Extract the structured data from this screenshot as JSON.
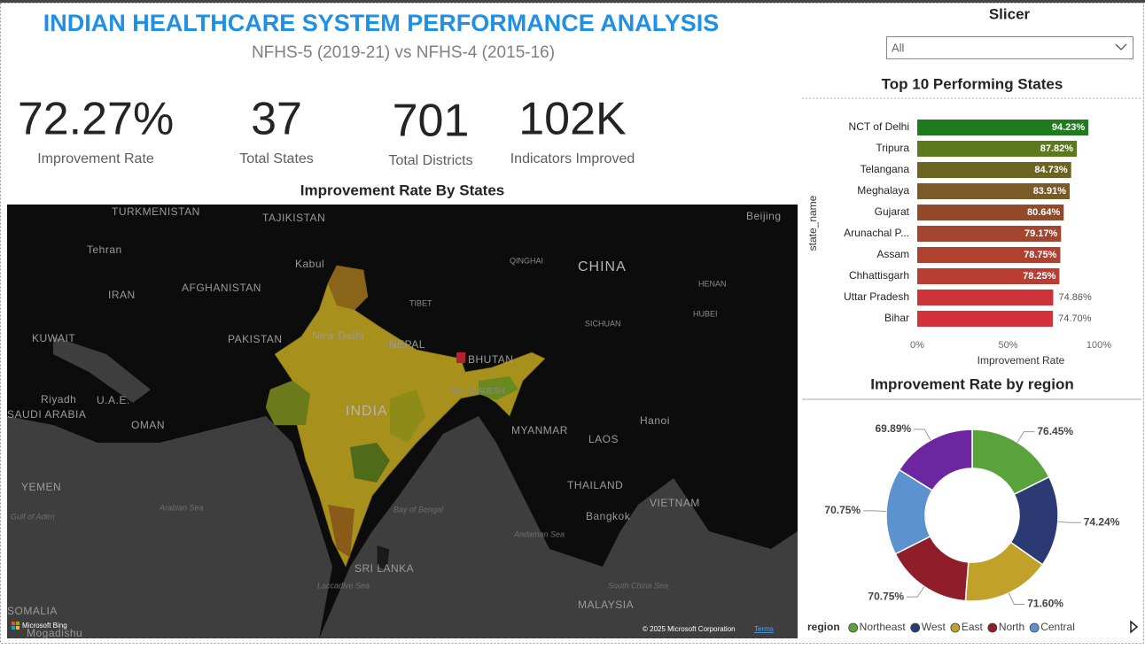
{
  "header": {
    "title": "INDIAN HEALTHCARE SYSTEM PERFORMANCE ANALYSIS",
    "subtitle": "NFHS-5 (2019-21) vs NFHS-4 (2015-16)"
  },
  "kpis": [
    {
      "value": "72.27%",
      "label": "Improvement Rate"
    },
    {
      "value": "37",
      "label": "Total States"
    },
    {
      "value": "701",
      "label": "Total Districts"
    },
    {
      "value": "102K",
      "label": "Indicators Improved"
    }
  ],
  "slicer": {
    "title": "Slicer",
    "selected": "All"
  },
  "map": {
    "title": "Improvement Rate By States",
    "labels": [
      "TURKMENISTAN",
      "TAJIKISTAN",
      "Beijing",
      "Tehran",
      "Kabul",
      "QINGHAI",
      "AFGHANISTAN",
      "IRAN",
      "CHINA",
      "TIBET",
      "PAKISTAN",
      "New Delhi",
      "HENAN",
      "SICHUAN",
      "HUBEI",
      "KUWAIT",
      "NEPAL",
      "BHUTAN",
      "BANGLADESH",
      "Riyadh",
      "U.A.E.",
      "SAUDI ARABIA",
      "INDIA",
      "OMAN",
      "MYANMAR",
      "Hanoi",
      "LAOS",
      "YEMEN",
      "THAILAND",
      "Arabian Sea",
      "Bay of Bengal",
      "VIETNAM",
      "Bangkok",
      "Gulf of Aden",
      "Andaman Sea",
      "SRI LANKA",
      "South China Sea",
      "Laccadive Sea",
      "MALAYSIA",
      "SOMALIA",
      "Mogadishu"
    ],
    "attribution": "Microsoft Bing",
    "copyright": "© 2025 Microsoft Corporation",
    "terms": "Terms"
  },
  "chart_data": [
    {
      "type": "bar",
      "orientation": "horizontal",
      "title": "Top 10 Performing States",
      "x_label": "Improvement Rate",
      "y_label": "state_name",
      "categories": [
        "NCT of Delhi",
        "Tripura",
        "Telangana",
        "Meghalaya",
        "Gujarat",
        "Arunachal P...",
        "Assam",
        "Chhattisgarh",
        "Uttar Pradesh",
        "Bihar"
      ],
      "values": [
        94.23,
        87.82,
        84.73,
        83.91,
        80.64,
        79.17,
        78.75,
        78.25,
        74.86,
        74.7
      ],
      "value_labels": [
        "94.23%",
        "87.82%",
        "84.73%",
        "83.91%",
        "80.64%",
        "79.17%",
        "78.75%",
        "78.25%",
        "74.86%",
        "74.70%"
      ],
      "colors": [
        "#1e7b1e",
        "#5b7a1c",
        "#6c6422",
        "#7a5a26",
        "#924a2b",
        "#a4452f",
        "#ae4130",
        "#b83d33",
        "#cd3439",
        "#d3323b"
      ],
      "xlim": [
        0,
        100
      ],
      "xticks": [
        {
          "value": 0,
          "label": "0%"
        },
        {
          "value": 50,
          "label": "50%"
        },
        {
          "value": 100,
          "label": "100%"
        }
      ]
    },
    {
      "type": "donut",
      "title": "Improvement Rate by region",
      "legend_title": "region",
      "categories": [
        "Northeast",
        "West",
        "East",
        "North",
        "Central",
        null
      ],
      "values": [
        76.45,
        74.24,
        71.6,
        70.75,
        70.75,
        69.89
      ],
      "value_labels": [
        "76.45%",
        "74.24%",
        "71.60%",
        "70.75%",
        "70.75%",
        "69.89%"
      ],
      "colors": [
        "#5aa33c",
        "#2b3a73",
        "#c1a12a",
        "#8f1d2a",
        "#5b92cf",
        "#6c26a0"
      ]
    }
  ]
}
